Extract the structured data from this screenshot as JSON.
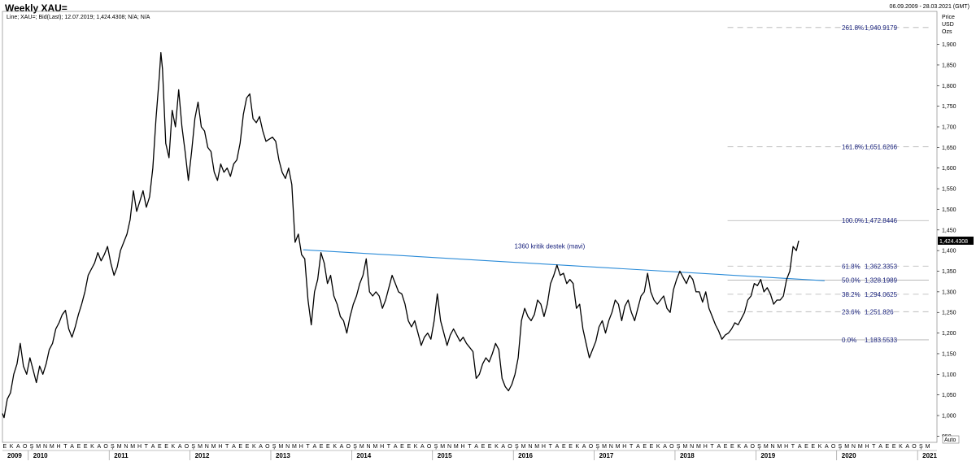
{
  "header": {
    "title": "Weekly XAU=",
    "date_range": "06.09.2009 - 28.03.2021 (GMT)"
  },
  "chart_data": {
    "type": "line",
    "legend_text": "Line; XAU=; Bid(Last); 12.07.2019; 1,424.4308; N/A; N/A",
    "y_unit_labels": [
      "Price",
      "USD",
      "Ozs"
    ],
    "ylim": [
      935,
      1980
    ],
    "y_ticks": [
      950,
      1000,
      1050,
      1100,
      1150,
      1200,
      1250,
      1300,
      1350,
      1400,
      1450,
      1500,
      1550,
      1600,
      1650,
      1700,
      1750,
      1800,
      1850,
      1900
    ],
    "y_tick_labels": [
      "950",
      "1,000",
      "1,050",
      "1,100",
      "1,150",
      "1,200",
      "1,250",
      "1,300",
      "1,350",
      "1,400",
      "1,450",
      "1,500",
      "1,550",
      "1,600",
      "1,650",
      "1,700",
      "1,750",
      "1,800",
      "1,850",
      "1,900"
    ],
    "last_value_label": "1,424.4308",
    "x_range": [
      2009.68,
      2021.24
    ],
    "month_letters": "EKAOŞMNMHTAEEKAOŞMNMHTAEEKAOŞMNMHTAEEKAOŞMNMHTAEEKAOŞMNMHTAEEKAOŞMNMHTAEEKAOŞMNMHTAEEKAOŞMNMHTAEEKAOŞMNMHTAEEKAOŞMNMHTAEEKAOŞMNMHTAEEKAOŞM",
    "years": [
      "2009",
      "2010",
      "2011",
      "2012",
      "2013",
      "2014",
      "2015",
      "2016",
      "2017",
      "2018",
      "2019",
      "2020",
      "2021"
    ],
    "auto_label": "Auto",
    "series": [
      {
        "values": [
          [
            2009.68,
            1005
          ],
          [
            2009.7,
            995
          ],
          [
            2009.74,
            1040
          ],
          [
            2009.78,
            1055
          ],
          [
            2009.82,
            1100
          ],
          [
            2009.86,
            1125
          ],
          [
            2009.9,
            1175
          ],
          [
            2009.94,
            1120
          ],
          [
            2009.98,
            1100
          ],
          [
            2010.02,
            1140
          ],
          [
            2010.06,
            1110
          ],
          [
            2010.1,
            1080
          ],
          [
            2010.14,
            1120
          ],
          [
            2010.18,
            1100
          ],
          [
            2010.22,
            1125
          ],
          [
            2010.26,
            1160
          ],
          [
            2010.3,
            1175
          ],
          [
            2010.34,
            1210
          ],
          [
            2010.38,
            1225
          ],
          [
            2010.42,
            1245
          ],
          [
            2010.46,
            1255
          ],
          [
            2010.5,
            1210
          ],
          [
            2010.54,
            1190
          ],
          [
            2010.58,
            1215
          ],
          [
            2010.62,
            1245
          ],
          [
            2010.66,
            1270
          ],
          [
            2010.7,
            1300
          ],
          [
            2010.74,
            1340
          ],
          [
            2010.78,
            1355
          ],
          [
            2010.82,
            1370
          ],
          [
            2010.86,
            1395
          ],
          [
            2010.9,
            1375
          ],
          [
            2010.94,
            1390
          ],
          [
            2010.98,
            1410
          ],
          [
            2011.02,
            1370
          ],
          [
            2011.06,
            1340
          ],
          [
            2011.1,
            1360
          ],
          [
            2011.14,
            1400
          ],
          [
            2011.18,
            1420
          ],
          [
            2011.22,
            1440
          ],
          [
            2011.26,
            1475
          ],
          [
            2011.3,
            1545
          ],
          [
            2011.34,
            1495
          ],
          [
            2011.38,
            1520
          ],
          [
            2011.42,
            1545
          ],
          [
            2011.46,
            1505
          ],
          [
            2011.5,
            1530
          ],
          [
            2011.54,
            1600
          ],
          [
            2011.58,
            1720
          ],
          [
            2011.62,
            1820
          ],
          [
            2011.64,
            1880
          ],
          [
            2011.66,
            1840
          ],
          [
            2011.7,
            1660
          ],
          [
            2011.74,
            1625
          ],
          [
            2011.78,
            1740
          ],
          [
            2011.82,
            1700
          ],
          [
            2011.86,
            1790
          ],
          [
            2011.9,
            1700
          ],
          [
            2011.94,
            1640
          ],
          [
            2011.98,
            1570
          ],
          [
            2012.02,
            1640
          ],
          [
            2012.06,
            1720
          ],
          [
            2012.1,
            1760
          ],
          [
            2012.14,
            1700
          ],
          [
            2012.18,
            1690
          ],
          [
            2012.22,
            1650
          ],
          [
            2012.26,
            1640
          ],
          [
            2012.3,
            1590
          ],
          [
            2012.34,
            1570
          ],
          [
            2012.38,
            1610
          ],
          [
            2012.42,
            1590
          ],
          [
            2012.46,
            1600
          ],
          [
            2012.5,
            1580
          ],
          [
            2012.54,
            1610
          ],
          [
            2012.58,
            1620
          ],
          [
            2012.62,
            1660
          ],
          [
            2012.66,
            1730
          ],
          [
            2012.7,
            1770
          ],
          [
            2012.74,
            1780
          ],
          [
            2012.78,
            1720
          ],
          [
            2012.82,
            1710
          ],
          [
            2012.86,
            1725
          ],
          [
            2012.9,
            1690
          ],
          [
            2012.94,
            1665
          ],
          [
            2012.98,
            1670
          ],
          [
            2013.02,
            1675
          ],
          [
            2013.06,
            1665
          ],
          [
            2013.1,
            1620
          ],
          [
            2013.14,
            1590
          ],
          [
            2013.18,
            1575
          ],
          [
            2013.22,
            1600
          ],
          [
            2013.26,
            1560
          ],
          [
            2013.3,
            1420
          ],
          [
            2013.34,
            1440
          ],
          [
            2013.38,
            1390
          ],
          [
            2013.42,
            1380
          ],
          [
            2013.46,
            1280
          ],
          [
            2013.5,
            1220
          ],
          [
            2013.54,
            1300
          ],
          [
            2013.58,
            1330
          ],
          [
            2013.62,
            1395
          ],
          [
            2013.66,
            1370
          ],
          [
            2013.7,
            1320
          ],
          [
            2013.74,
            1340
          ],
          [
            2013.78,
            1290
          ],
          [
            2013.82,
            1270
          ],
          [
            2013.86,
            1240
          ],
          [
            2013.9,
            1230
          ],
          [
            2013.94,
            1200
          ],
          [
            2013.98,
            1240
          ],
          [
            2014.02,
            1270
          ],
          [
            2014.06,
            1290
          ],
          [
            2014.1,
            1320
          ],
          [
            2014.14,
            1340
          ],
          [
            2014.18,
            1380
          ],
          [
            2014.22,
            1300
          ],
          [
            2014.26,
            1290
          ],
          [
            2014.3,
            1300
          ],
          [
            2014.34,
            1290
          ],
          [
            2014.38,
            1260
          ],
          [
            2014.42,
            1280
          ],
          [
            2014.46,
            1310
          ],
          [
            2014.5,
            1340
          ],
          [
            2014.54,
            1320
          ],
          [
            2014.58,
            1300
          ],
          [
            2014.62,
            1295
          ],
          [
            2014.66,
            1270
          ],
          [
            2014.7,
            1230
          ],
          [
            2014.74,
            1215
          ],
          [
            2014.78,
            1230
          ],
          [
            2014.82,
            1200
          ],
          [
            2014.86,
            1170
          ],
          [
            2014.9,
            1190
          ],
          [
            2014.94,
            1200
          ],
          [
            2014.98,
            1185
          ],
          [
            2015.02,
            1230
          ],
          [
            2015.06,
            1295
          ],
          [
            2015.1,
            1230
          ],
          [
            2015.14,
            1200
          ],
          [
            2015.18,
            1170
          ],
          [
            2015.22,
            1195
          ],
          [
            2015.26,
            1210
          ],
          [
            2015.3,
            1195
          ],
          [
            2015.34,
            1180
          ],
          [
            2015.38,
            1190
          ],
          [
            2015.42,
            1175
          ],
          [
            2015.46,
            1165
          ],
          [
            2015.5,
            1155
          ],
          [
            2015.54,
            1090
          ],
          [
            2015.58,
            1100
          ],
          [
            2015.62,
            1125
          ],
          [
            2015.66,
            1140
          ],
          [
            2015.7,
            1130
          ],
          [
            2015.74,
            1150
          ],
          [
            2015.78,
            1175
          ],
          [
            2015.82,
            1160
          ],
          [
            2015.86,
            1090
          ],
          [
            2015.9,
            1070
          ],
          [
            2015.94,
            1060
          ],
          [
            2015.98,
            1075
          ],
          [
            2016.02,
            1100
          ],
          [
            2016.06,
            1140
          ],
          [
            2016.1,
            1230
          ],
          [
            2016.14,
            1260
          ],
          [
            2016.18,
            1240
          ],
          [
            2016.22,
            1230
          ],
          [
            2016.26,
            1245
          ],
          [
            2016.3,
            1280
          ],
          [
            2016.34,
            1270
          ],
          [
            2016.38,
            1240
          ],
          [
            2016.42,
            1270
          ],
          [
            2016.46,
            1320
          ],
          [
            2016.5,
            1340
          ],
          [
            2016.54,
            1365
          ],
          [
            2016.58,
            1340
          ],
          [
            2016.62,
            1345
          ],
          [
            2016.66,
            1320
          ],
          [
            2016.7,
            1330
          ],
          [
            2016.74,
            1320
          ],
          [
            2016.78,
            1260
          ],
          [
            2016.82,
            1270
          ],
          [
            2016.86,
            1210
          ],
          [
            2016.9,
            1175
          ],
          [
            2016.94,
            1140
          ],
          [
            2016.98,
            1160
          ],
          [
            2017.02,
            1180
          ],
          [
            2017.06,
            1215
          ],
          [
            2017.1,
            1230
          ],
          [
            2017.14,
            1200
          ],
          [
            2017.18,
            1230
          ],
          [
            2017.22,
            1250
          ],
          [
            2017.26,
            1280
          ],
          [
            2017.3,
            1270
          ],
          [
            2017.34,
            1230
          ],
          [
            2017.38,
            1265
          ],
          [
            2017.42,
            1280
          ],
          [
            2017.46,
            1250
          ],
          [
            2017.5,
            1230
          ],
          [
            2017.54,
            1260
          ],
          [
            2017.58,
            1290
          ],
          [
            2017.62,
            1300
          ],
          [
            2017.66,
            1345
          ],
          [
            2017.7,
            1300
          ],
          [
            2017.74,
            1280
          ],
          [
            2017.78,
            1270
          ],
          [
            2017.82,
            1280
          ],
          [
            2017.86,
            1290
          ],
          [
            2017.9,
            1260
          ],
          [
            2017.94,
            1250
          ],
          [
            2017.98,
            1305
          ],
          [
            2018.02,
            1330
          ],
          [
            2018.06,
            1350
          ],
          [
            2018.1,
            1335
          ],
          [
            2018.14,
            1320
          ],
          [
            2018.18,
            1340
          ],
          [
            2018.22,
            1330
          ],
          [
            2018.26,
            1300
          ],
          [
            2018.3,
            1300
          ],
          [
            2018.34,
            1275
          ],
          [
            2018.38,
            1300
          ],
          [
            2018.42,
            1260
          ],
          [
            2018.46,
            1240
          ],
          [
            2018.5,
            1220
          ],
          [
            2018.54,
            1205
          ],
          [
            2018.58,
            1185
          ],
          [
            2018.62,
            1195
          ],
          [
            2018.66,
            1200
          ],
          [
            2018.7,
            1210
          ],
          [
            2018.74,
            1225
          ],
          [
            2018.78,
            1220
          ],
          [
            2018.82,
            1235
          ],
          [
            2018.86,
            1250
          ],
          [
            2018.9,
            1280
          ],
          [
            2018.94,
            1290
          ],
          [
            2018.98,
            1320
          ],
          [
            2019.02,
            1315
          ],
          [
            2019.06,
            1330
          ],
          [
            2019.1,
            1300
          ],
          [
            2019.14,
            1310
          ],
          [
            2019.18,
            1295
          ],
          [
            2019.22,
            1270
          ],
          [
            2019.26,
            1280
          ],
          [
            2019.3,
            1280
          ],
          [
            2019.34,
            1290
          ],
          [
            2019.38,
            1330
          ],
          [
            2019.42,
            1350
          ],
          [
            2019.46,
            1410
          ],
          [
            2019.5,
            1400
          ],
          [
            2019.53,
            1424
          ]
        ]
      }
    ],
    "annotations": [
      {
        "text": "1360 kritik destek (mavi)",
        "x": 2016.45,
        "y": 1405
      }
    ],
    "trendline": {
      "color": "#2a8bd8",
      "from": [
        2013.4,
        1402
      ],
      "to": [
        2019.85,
        1327
      ]
    },
    "fibonacci": [
      {
        "pct": "261.8%",
        "value": "1,940.9179",
        "y": 1940.9179
      },
      {
        "pct": "161.8%",
        "value": "1,651.6266",
        "y": 1651.6266
      },
      {
        "pct": "100.0%",
        "value": "1,472.8446",
        "y": 1472.8446
      },
      {
        "pct": "61.8%",
        "value": "1,362.3353",
        "y": 1362.3353
      },
      {
        "pct": "50.0%",
        "value": "1,328.1989",
        "y": 1328.1989
      },
      {
        "pct": "38.2%",
        "value": "1,294.0625",
        "y": 1294.0625
      },
      {
        "pct": "23.6%",
        "value": "1,251.826",
        "y": 1251.826
      },
      {
        "pct": "0.0%",
        "value": "1,183.5533",
        "y": 1183.5533
      }
    ],
    "fib_x_start": 2018.65,
    "colors": {
      "line": "#000000",
      "trend": "#2a8bd8",
      "fib_text": "#1a237e",
      "fib_line": "#b0b0b0"
    }
  }
}
